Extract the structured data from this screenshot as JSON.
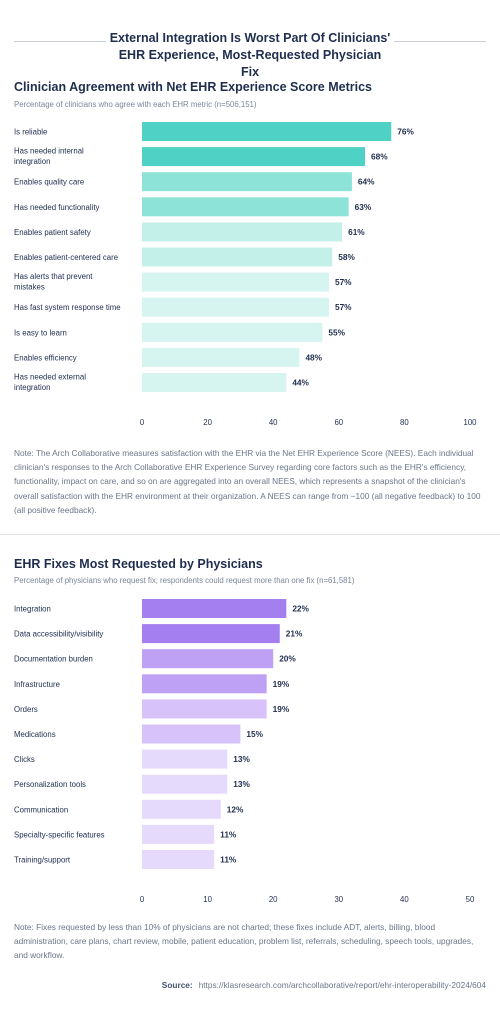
{
  "header": {
    "title": "External Integration Is Worst Part Of Clinicians' EHR Experience, Most-Requested Physician Fix"
  },
  "chart1": {
    "title": "Clinician Agreement with Net EHR Experience Score Metrics",
    "subtitle": "Percentage of clinicians who agree with each EHR metric (n=506,151)",
    "note": "Note: The Arch Collaborative measures satisfaction with the EHR via the Net EHR Experience Score (NEES). Each individual clinician's responses to the Arch Collaborative EHR Experience Survey regarding core factors such as the EHR's efficiency, functionality, impact on care, and so on are aggregated into an overall NEES, which represents a snapshot of the clinician's overall satisfaction with the EHR environment at their organization. A NEES can range from −100 (all negative feedback) to 100 (all positive feedback)."
  },
  "chart2": {
    "title": "EHR Fixes Most Requested by Physicians",
    "subtitle": "Percentage of physicians who request fix; respondents could request more than one fix (n=61,581)",
    "note": "Note: Fixes requested by less than 10% of physicians are not charted; these fixes include ADT, alerts, billing, blood administration, care plans, chart review, mobile, patient education, problem list, referrals, scheduling, speech tools, upgrades, and workflow."
  },
  "source": {
    "label": "Source:",
    "url": "https://klasresearch.com/archcollaborative/report/ehr-interoperability-2024/604"
  },
  "chart_data": [
    {
      "type": "bar",
      "orientation": "horizontal",
      "title": "Clinician Agreement with Net EHR Experience Score Metrics",
      "subtitle": "Percentage of clinicians who agree with each EHR metric (n=506,151)",
      "categories": [
        [
          "Is reliable"
        ],
        [
          "Has needed internal",
          "integration"
        ],
        [
          "Enables quality care"
        ],
        [
          "Has needed functionality"
        ],
        [
          "Enables patient safety"
        ],
        [
          "Enables patient-centered care"
        ],
        [
          "Has alerts that prevent",
          "mistakes"
        ],
        [
          "Has fast system response time"
        ],
        [
          "Is easy to learn"
        ],
        [
          "Enables efficiency"
        ],
        [
          "Has needed external",
          "integration"
        ]
      ],
      "values": [
        76,
        68,
        64,
        63,
        61,
        58,
        57,
        57,
        55,
        48,
        44
      ],
      "value_suffix": "%",
      "colors": [
        "#4fd1c5",
        "#4fd1c5",
        "#8ee3d8",
        "#8ee3d8",
        "#c4f0ea",
        "#c4f0ea",
        "#d6f4f0",
        "#d6f4f0",
        "#d6f4f0",
        "#d6f4f0",
        "#d6f4f0"
      ],
      "xlim": [
        0,
        100
      ],
      "xticks": [
        0,
        20,
        40,
        60,
        80,
        100
      ]
    },
    {
      "type": "bar",
      "orientation": "horizontal",
      "title": "EHR Fixes Most Requested by Physicians",
      "subtitle": "Percentage of physicians who request fix; respondents could request more than one fix (n=61,581)",
      "categories": [
        [
          "Integration"
        ],
        [
          "Data accessibility/visibility"
        ],
        [
          "Documentation burden"
        ],
        [
          "Infrastructure"
        ],
        [
          "Orders"
        ],
        [
          "Medications"
        ],
        [
          "Clicks"
        ],
        [
          "Personalization tools"
        ],
        [
          "Communication"
        ],
        [
          "Specialty-specific features"
        ],
        [
          "Training/support"
        ]
      ],
      "values": [
        22,
        21,
        20,
        19,
        19,
        15,
        13,
        13,
        12,
        11,
        11
      ],
      "value_suffix": "%",
      "colors": [
        "#a47ff0",
        "#a47ff0",
        "#bea0f5",
        "#bea0f5",
        "#d7c2fa",
        "#d7c2fa",
        "#e6dafc",
        "#e6dafc",
        "#e6dafc",
        "#e6dafc",
        "#e6dafc"
      ],
      "xlim": [
        0,
        50
      ],
      "xticks": [
        0,
        10,
        20,
        30,
        40,
        50
      ]
    }
  ]
}
